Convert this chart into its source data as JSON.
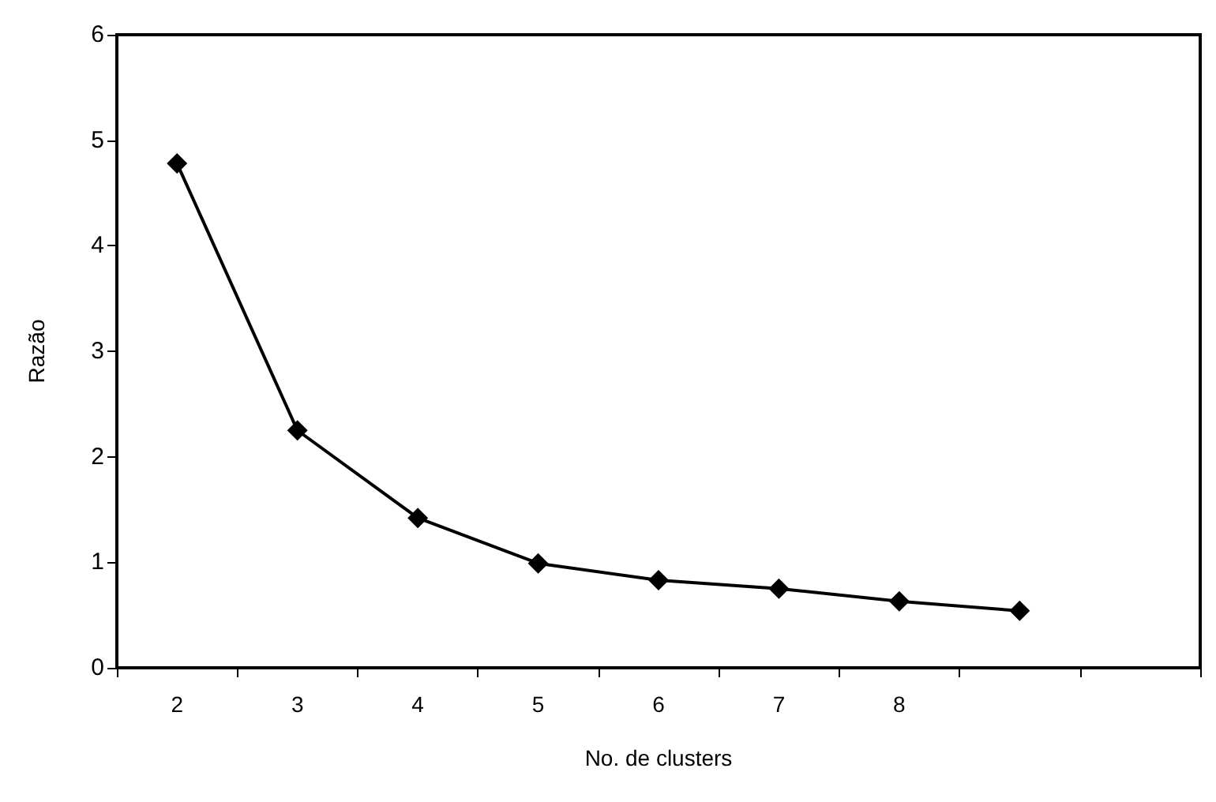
{
  "chart_data": {
    "type": "line",
    "xlabel": "No. de clusters",
    "ylabel": "Razão",
    "categories": [
      "2",
      "3",
      "4",
      "5",
      "6",
      "7",
      "8",
      null,
      null
    ],
    "series": [
      {
        "color": "#000000",
        "values": [
          4.78,
          2.25,
          1.42,
          0.99,
          0.83,
          0.75,
          0.63,
          0.54,
          null
        ]
      }
    ],
    "ylim": [
      0,
      6
    ],
    "yticks": [
      0,
      1,
      2,
      3,
      4,
      5,
      6
    ],
    "grid": false,
    "marker": "diamond",
    "line_style": "solid"
  }
}
